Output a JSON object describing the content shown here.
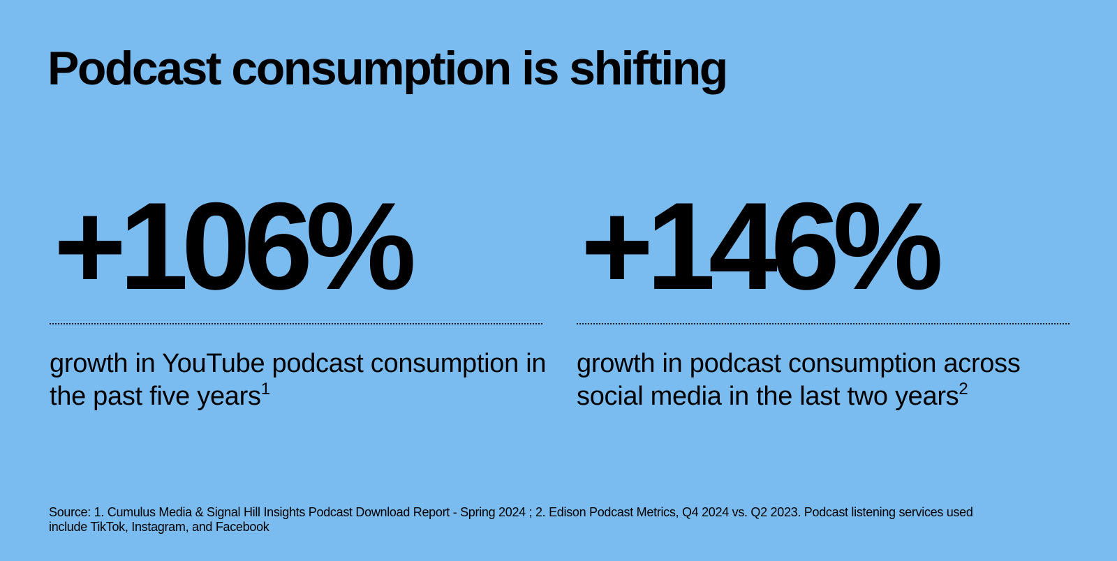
{
  "colors": {
    "background": "#7bbcf0",
    "text": "#000000"
  },
  "slide": {
    "title": "Podcast consumption is shifting",
    "stats": [
      {
        "value": "+106%",
        "label": "growth in YouTube podcast consumption in the past five years",
        "footnote": "1"
      },
      {
        "value": "+146%",
        "label": "growth in podcast consumption across social media in the last two years",
        "footnote": "2"
      }
    ],
    "source": "Source: 1. Cumulus Media & Signal Hill Insights Podcast Download Report - Spring 2024 ; 2. Edison Podcast Metrics, Q4 2024 vs. Q2 2023. Podcast listening services used include TikTok, Instagram, and Facebook"
  }
}
